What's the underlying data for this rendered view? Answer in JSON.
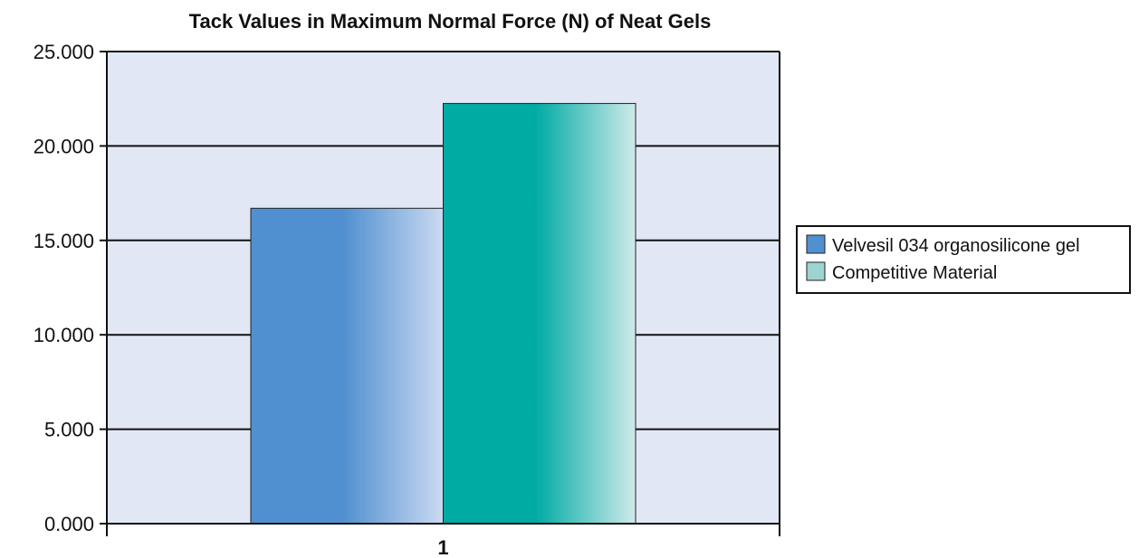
{
  "chart_data": {
    "type": "bar",
    "title": "Tack Values in Maximum Normal Force (N) of Neat Gels",
    "xlabel": "",
    "ylabel": "",
    "categories": [
      "1"
    ],
    "series": [
      {
        "name": "Velvesil 034 organosilicone gel",
        "values": [
          16.7
        ],
        "color": "#5090d0",
        "gradient_end": "#cbdaf1"
      },
      {
        "name": "Competitive Material",
        "values": [
          22.25
        ],
        "color": "#00aba4",
        "gradient_end": "#cfeaea"
      }
    ],
    "ylim": [
      0,
      25
    ],
    "yticks": [
      "0.000",
      "5.000",
      "10.000",
      "15.000",
      "20.000",
      "25.000"
    ],
    "grid": true,
    "legend": "right",
    "colors": {
      "plot_background": "#e1e7f4",
      "gridline": "#111111",
      "axis": "#111111"
    }
  }
}
